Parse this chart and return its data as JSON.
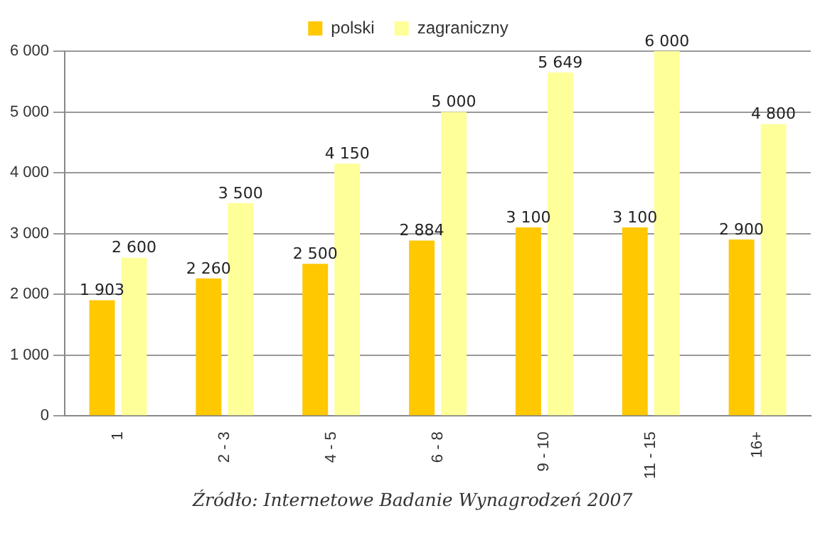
{
  "chart_data": {
    "type": "bar",
    "categories": [
      "1",
      "2 - 3",
      "4 - 5",
      "6 - 8",
      "9 - 10",
      "11 - 15",
      "16+"
    ],
    "series": [
      {
        "name": "polski",
        "color": "#ffc800",
        "values": [
          1903,
          2260,
          2500,
          2884,
          3100,
          3100,
          2900
        ],
        "value_labels": [
          "1 903",
          "2 260",
          "2 500",
          "2 884",
          "3 100",
          "3 100",
          "2 900"
        ]
      },
      {
        "name": "zagraniczny",
        "color": "#ffff99",
        "values": [
          2600,
          3500,
          4150,
          5000,
          5649,
          6000,
          4800
        ],
        "value_labels": [
          "2 600",
          "3 500",
          "4 150",
          "5 000",
          "5 649",
          "6 000",
          "4 800"
        ]
      }
    ],
    "ylim": [
      0,
      6000
    ],
    "yticks": [
      {
        "value": 0,
        "label": "0"
      },
      {
        "value": 1000,
        "label": "1 000"
      },
      {
        "value": 2000,
        "label": "2 000"
      },
      {
        "value": 3000,
        "label": "3 000"
      },
      {
        "value": 4000,
        "label": "4 000"
      },
      {
        "value": 5000,
        "label": "5 000"
      },
      {
        "value": 6000,
        "label": "6 000"
      }
    ],
    "grid": "y",
    "legend": "top",
    "annotations": [
      "Źródło: Internetowe Badanie Wynagrodzeń 2007"
    ]
  }
}
